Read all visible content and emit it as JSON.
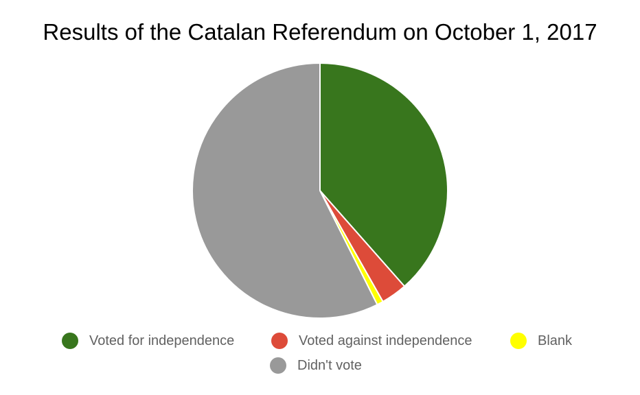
{
  "chart_data": {
    "type": "pie",
    "title": "Results of the Catalan Referendum on October 1, 2017",
    "legend_position": "bottom",
    "slices": [
      {
        "label": "Voted for independence",
        "value": 38.5,
        "color": "#38761d"
      },
      {
        "label": "Voted against independence",
        "value": 3.3,
        "color": "#dd4b39"
      },
      {
        "label": "Blank",
        "value": 0.8,
        "color": "#ffff00"
      },
      {
        "label": "Didn't vote",
        "value": 57.4,
        "color": "#999999"
      }
    ]
  }
}
